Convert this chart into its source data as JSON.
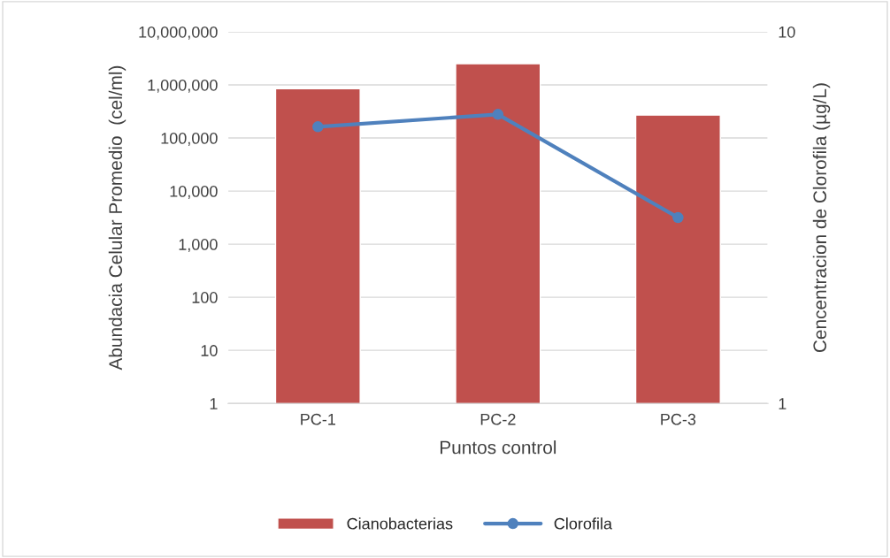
{
  "chart_data": {
    "type": "bar",
    "categories": [
      "PC-1",
      "PC-2",
      "PC-3"
    ],
    "series": [
      {
        "name": "Cianobacterias",
        "color": "#c0504d",
        "values": [
          850000,
          2500000,
          270000
        ]
      },
      {
        "name": "Clorofila",
        "type": "line",
        "color": "#4f81bd",
        "axis": "y2",
        "values": [
          7.7,
          8.0,
          5.5
        ]
      }
    ],
    "xlabel": "Puntos control",
    "ylabel": "Abundacia Celular Promedio  (cel/ml)",
    "y2label": "Cencentracion de Clorofila (µg/L)",
    "log": "y",
    "ylim": [
      1,
      10000000
    ],
    "yticks": [
      {
        "value": 1,
        "label": "1"
      },
      {
        "value": 10,
        "label": "10"
      },
      {
        "value": 100,
        "label": "100"
      },
      {
        "value": 1000,
        "label": "1,000"
      },
      {
        "value": 10000,
        "label": "10,000"
      },
      {
        "value": 100000,
        "label": "100,000"
      },
      {
        "value": 1000000,
        "label": "1,000,000"
      },
      {
        "value": 10000000,
        "label": "10,000,000"
      }
    ],
    "y2lim": [
      1,
      10
    ],
    "y2ticks": [
      1,
      10
    ],
    "grid": "y",
    "legend": "bottom",
    "marker": "circle"
  }
}
